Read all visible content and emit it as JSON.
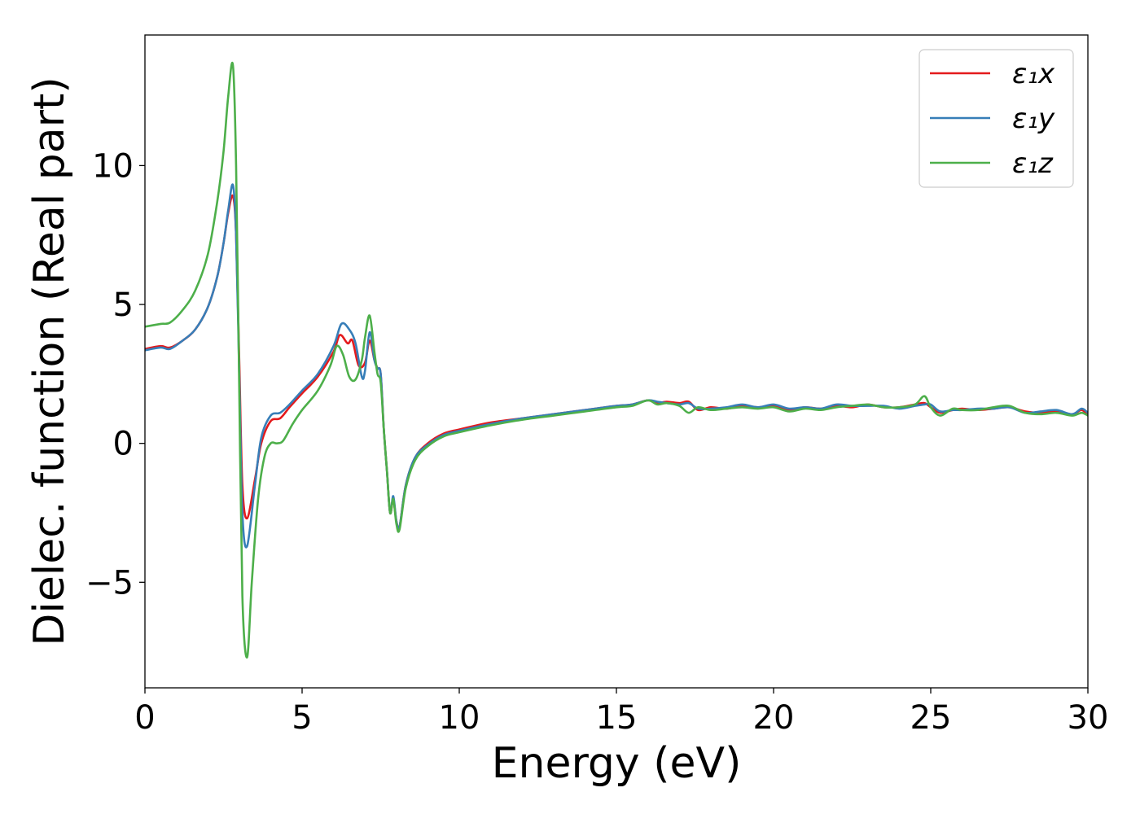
{
  "chart_data": {
    "type": "line",
    "xlabel": "Energy (eV)",
    "ylabel": "Dielec. function (Real part)",
    "xlim": [
      0,
      30
    ],
    "ylim": [
      -8.8,
      14.7
    ],
    "xticks": [
      "0",
      "5",
      "10",
      "15",
      "20",
      "25",
      "30"
    ],
    "yticks": [
      "−5",
      "0",
      "5",
      "10"
    ],
    "grid": false,
    "legend_position": "upper right",
    "series": [
      {
        "name": "ε₁x",
        "color": "#e41a1c",
        "x": [
          0,
          0.5,
          0.8,
          1.2,
          1.6,
          2.0,
          2.3,
          2.5,
          2.65,
          2.8,
          2.9,
          3.0,
          3.1,
          3.25,
          3.5,
          3.7,
          4.0,
          4.3,
          4.6,
          5.0,
          5.5,
          6.0,
          6.2,
          6.45,
          6.6,
          6.8,
          7.0,
          7.15,
          7.3,
          7.4,
          7.5,
          7.6,
          7.7,
          7.8,
          7.9,
          8.0,
          8.1,
          8.3,
          8.6,
          9.0,
          9.5,
          10,
          11,
          12,
          13,
          14,
          15,
          15.5,
          16,
          16.3,
          16.6,
          17.0,
          17.3,
          17.6,
          18,
          18.5,
          19,
          19.5,
          20,
          20.5,
          21,
          21.5,
          22,
          22.5,
          23,
          23.5,
          24,
          24.5,
          24.8,
          25.0,
          25.3,
          25.7,
          26,
          26.5,
          27,
          27.5,
          28,
          28.5,
          29,
          29.5,
          29.8,
          30
        ],
        "y": [
          3.4,
          3.5,
          3.45,
          3.7,
          4.1,
          4.9,
          6.0,
          7.2,
          8.3,
          8.9,
          7.5,
          3.0,
          -1.5,
          -2.7,
          -1.3,
          0.0,
          0.8,
          0.9,
          1.3,
          1.8,
          2.4,
          3.3,
          3.9,
          3.6,
          3.7,
          2.8,
          2.9,
          3.7,
          3.0,
          2.7,
          2.5,
          0.5,
          -1.0,
          -2.5,
          -2.0,
          -2.8,
          -3.0,
          -1.5,
          -0.5,
          0.0,
          0.35,
          0.5,
          0.75,
          0.9,
          1.05,
          1.2,
          1.35,
          1.4,
          1.55,
          1.45,
          1.5,
          1.45,
          1.5,
          1.2,
          1.3,
          1.25,
          1.35,
          1.3,
          1.35,
          1.2,
          1.3,
          1.25,
          1.35,
          1.3,
          1.4,
          1.3,
          1.3,
          1.4,
          1.45,
          1.3,
          1.1,
          1.2,
          1.25,
          1.2,
          1.25,
          1.3,
          1.15,
          1.1,
          1.15,
          1.05,
          1.2,
          1.0
        ]
      },
      {
        "name": "ε₁y",
        "color": "#377eb8",
        "x": [
          0,
          0.5,
          0.8,
          1.2,
          1.6,
          2.0,
          2.3,
          2.5,
          2.65,
          2.8,
          2.9,
          3.0,
          3.1,
          3.25,
          3.5,
          3.7,
          4.0,
          4.3,
          4.6,
          5.0,
          5.5,
          6.0,
          6.25,
          6.5,
          6.7,
          6.9,
          7.0,
          7.15,
          7.3,
          7.4,
          7.5,
          7.6,
          7.7,
          7.8,
          7.9,
          8.0,
          8.1,
          8.3,
          8.6,
          9.0,
          9.5,
          10,
          11,
          12,
          13,
          14,
          15,
          15.5,
          16,
          16.3,
          16.6,
          17.0,
          17.3,
          17.6,
          18,
          18.5,
          19,
          19.5,
          20,
          20.5,
          21,
          21.5,
          22,
          22.5,
          23,
          23.5,
          24,
          24.5,
          24.8,
          25.0,
          25.3,
          25.7,
          26,
          26.5,
          27,
          27.5,
          28,
          28.5,
          29,
          29.5,
          29.8,
          30
        ],
        "y": [
          3.35,
          3.45,
          3.4,
          3.7,
          4.1,
          4.9,
          6.0,
          7.2,
          8.4,
          9.3,
          7.5,
          2.5,
          -2.5,
          -3.7,
          -1.5,
          0.2,
          1.0,
          1.1,
          1.4,
          1.9,
          2.5,
          3.5,
          4.3,
          4.1,
          3.6,
          2.4,
          2.6,
          4.0,
          3.0,
          2.7,
          2.5,
          0.5,
          -1.0,
          -2.5,
          -1.9,
          -2.8,
          -3.0,
          -1.5,
          -0.5,
          -0.05,
          0.3,
          0.45,
          0.7,
          0.9,
          1.05,
          1.2,
          1.35,
          1.4,
          1.55,
          1.5,
          1.45,
          1.4,
          1.45,
          1.25,
          1.25,
          1.3,
          1.4,
          1.3,
          1.4,
          1.25,
          1.3,
          1.25,
          1.4,
          1.35,
          1.35,
          1.35,
          1.25,
          1.35,
          1.4,
          1.4,
          1.15,
          1.2,
          1.2,
          1.25,
          1.25,
          1.3,
          1.1,
          1.15,
          1.2,
          1.05,
          1.25,
          1.1
        ]
      },
      {
        "name": "ε₁z",
        "color": "#4daf4a",
        "x": [
          0,
          0.5,
          0.8,
          1.2,
          1.6,
          2.0,
          2.3,
          2.5,
          2.65,
          2.8,
          2.9,
          3.0,
          3.1,
          3.25,
          3.4,
          3.6,
          3.8,
          4.0,
          4.2,
          4.4,
          4.7,
          5.0,
          5.5,
          5.9,
          6.1,
          6.3,
          6.5,
          6.7,
          6.9,
          7.0,
          7.15,
          7.3,
          7.4,
          7.5,
          7.6,
          7.7,
          7.8,
          7.9,
          8.0,
          8.1,
          8.3,
          8.6,
          9.0,
          9.5,
          10,
          11,
          12,
          13,
          14,
          15,
          15.5,
          16,
          16.3,
          16.6,
          17.0,
          17.3,
          17.6,
          18,
          18.5,
          19,
          19.5,
          20,
          20.5,
          21,
          21.5,
          22,
          22.5,
          23,
          23.5,
          24,
          24.5,
          24.8,
          25.0,
          25.3,
          25.7,
          26,
          26.5,
          27,
          27.5,
          28,
          28.5,
          29,
          29.5,
          29.8,
          30
        ],
        "y": [
          4.2,
          4.3,
          4.35,
          4.8,
          5.5,
          6.8,
          8.7,
          10.5,
          12.5,
          13.6,
          10.0,
          2.0,
          -5.5,
          -7.7,
          -5.0,
          -2.0,
          -0.5,
          0.0,
          0.0,
          0.1,
          0.7,
          1.2,
          1.9,
          2.8,
          3.5,
          3.2,
          2.4,
          2.3,
          3.0,
          3.8,
          4.6,
          3.3,
          2.5,
          2.2,
          0.5,
          -1.0,
          -2.5,
          -2.0,
          -2.9,
          -3.1,
          -1.6,
          -0.6,
          -0.1,
          0.25,
          0.4,
          0.65,
          0.85,
          1.0,
          1.15,
          1.3,
          1.35,
          1.55,
          1.4,
          1.45,
          1.35,
          1.1,
          1.3,
          1.2,
          1.25,
          1.3,
          1.25,
          1.3,
          1.15,
          1.25,
          1.2,
          1.3,
          1.35,
          1.4,
          1.3,
          1.3,
          1.4,
          1.7,
          1.3,
          1.0,
          1.25,
          1.2,
          1.2,
          1.3,
          1.35,
          1.1,
          1.05,
          1.1,
          1.0,
          1.1,
          1.0
        ]
      }
    ]
  }
}
